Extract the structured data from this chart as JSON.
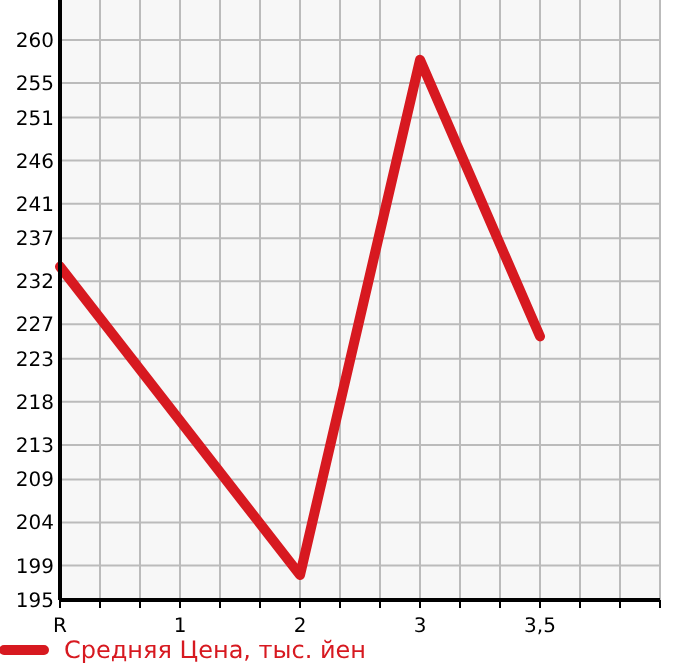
{
  "chart_data": {
    "type": "line",
    "categories": [
      "R",
      "1",
      "2",
      "3",
      "3,5"
    ],
    "series": [
      {
        "name": "Средняя Цена, тыс. йен",
        "color": "#d71920",
        "values": [
          233.7,
          null,
          197.9,
          257.7,
          225.6
        ]
      }
    ],
    "ylim": [
      195,
      260
    ],
    "yticks": [
      195,
      199,
      204,
      209,
      213,
      218,
      223,
      227,
      232,
      237,
      241,
      246,
      251,
      255,
      260
    ],
    "grid": true,
    "legend": "bottom left",
    "marker": "none",
    "line_style": "solid"
  }
}
